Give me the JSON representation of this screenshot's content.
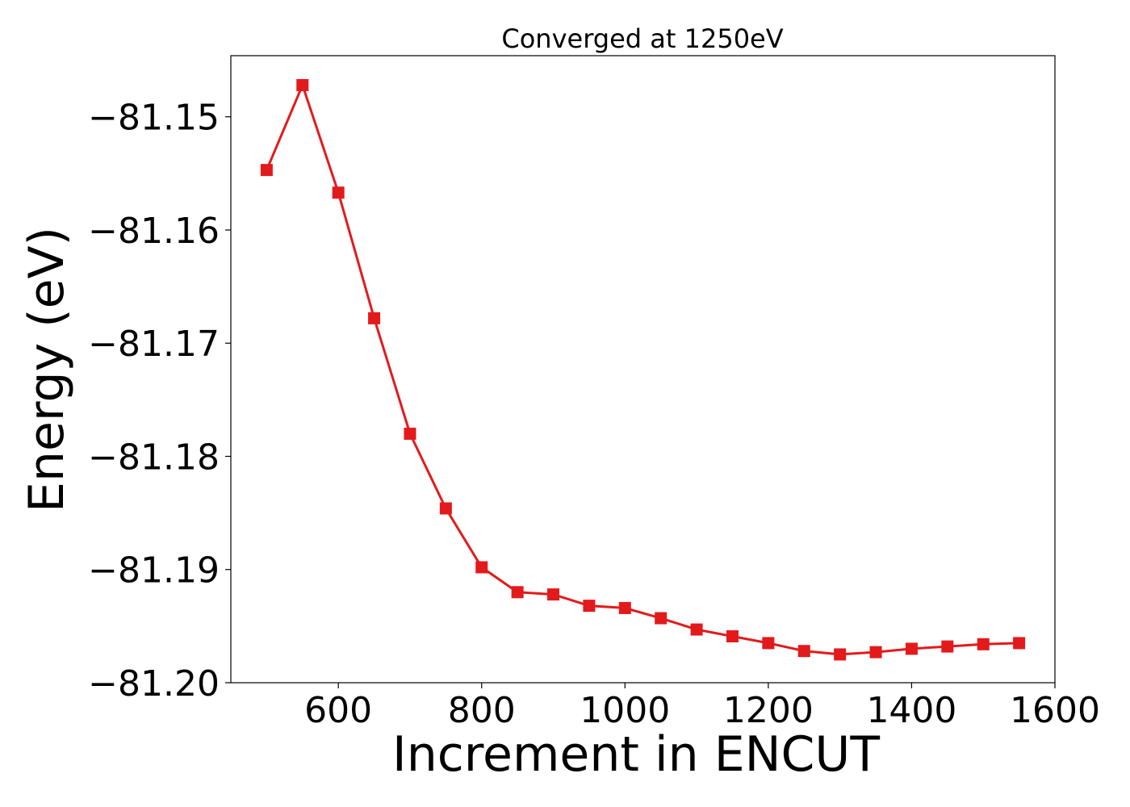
{
  "chart_data": {
    "type": "line",
    "title": "Converged at 1250eV",
    "xlabel": "Increment in ENCUT",
    "ylabel": "Energy (eV)",
    "xlim": [
      450,
      1600
    ],
    "ylim": [
      -81.2,
      -81.1446
    ],
    "xticks": [
      600,
      800,
      1000,
      1200,
      1400,
      1600
    ],
    "xtick_labels": [
      "600",
      "800",
      "1000",
      "1200",
      "1400",
      "1600"
    ],
    "yticks": [
      -81.15,
      -81.16,
      -81.17,
      -81.18,
      -81.19,
      -81.2
    ],
    "ytick_labels": [
      "−81.15",
      "−81.16",
      "−81.17",
      "−81.18",
      "−81.19",
      "−81.20"
    ],
    "grid": false,
    "series": [
      {
        "color": "#e31a1c",
        "marker": "square",
        "x": [
          500,
          550,
          600,
          650,
          700,
          750,
          800,
          850,
          900,
          950,
          1000,
          1050,
          1100,
          1150,
          1200,
          1250,
          1300,
          1350,
          1400,
          1450,
          1500,
          1550
        ],
        "y": [
          -81.1547,
          -81.1472,
          -81.1567,
          -81.1678,
          -81.178,
          -81.1846,
          -81.1898,
          -81.192,
          -81.1922,
          -81.1932,
          -81.1934,
          -81.1943,
          -81.1953,
          -81.1959,
          -81.1965,
          -81.1972,
          -81.1975,
          -81.1973,
          -81.197,
          -81.1968,
          -81.1966,
          -81.1965
        ]
      }
    ]
  }
}
